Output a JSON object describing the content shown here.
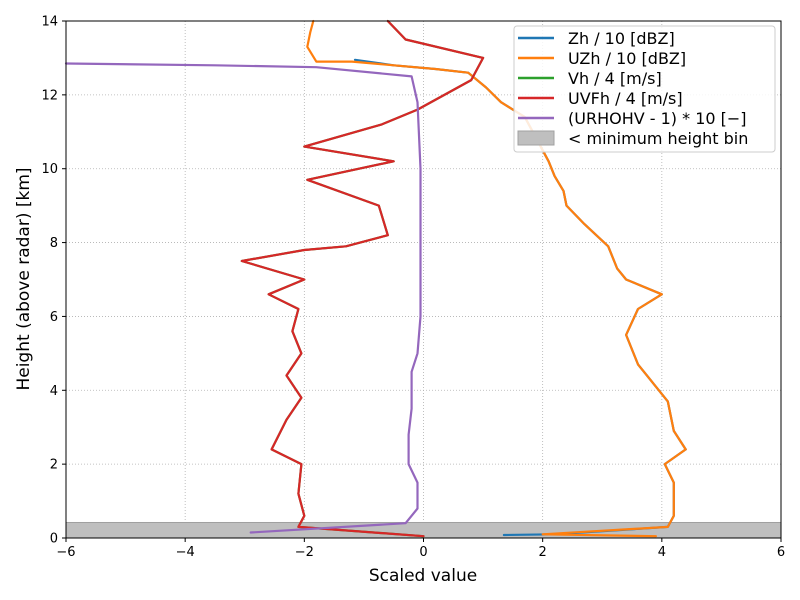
{
  "chart_data": {
    "type": "line",
    "title": "",
    "xlabel": "Scaled value",
    "ylabel": "Height (above radar) [km]",
    "xlim": [
      -6,
      6
    ],
    "ylim": [
      0,
      14
    ],
    "xticks": [
      -6,
      -4,
      -2,
      0,
      2,
      4,
      6
    ],
    "yticks": [
      0,
      2,
      4,
      6,
      8,
      10,
      12,
      14
    ],
    "xtick_labels": [
      "−6",
      "−4",
      "−2",
      "0",
      "2",
      "4",
      "6"
    ],
    "ytick_labels": [
      "0",
      "2",
      "4",
      "6",
      "8",
      "10",
      "12",
      "14"
    ],
    "grid": true,
    "legend_position": "top-right",
    "shaded_region": {
      "label": "< minimum height bin",
      "y_range": [
        0,
        0.42
      ],
      "color": "#bfbfbf"
    },
    "series": [
      {
        "name": "Zh / 10 [dBZ]",
        "color": "#1f77b4",
        "points": [
          [
            1.35,
            0.08
          ],
          [
            2.2,
            0.1
          ],
          [
            4.1,
            0.3
          ],
          [
            4.2,
            0.6
          ],
          [
            4.2,
            1.5
          ],
          [
            4.05,
            2.0
          ],
          [
            4.4,
            2.4
          ],
          [
            4.2,
            2.9
          ],
          [
            4.1,
            3.7
          ],
          [
            3.85,
            4.2
          ],
          [
            3.6,
            4.7
          ],
          [
            3.4,
            5.5
          ],
          [
            3.6,
            6.2
          ],
          [
            4.0,
            6.6
          ],
          [
            3.4,
            7.0
          ],
          [
            3.25,
            7.3
          ],
          [
            3.1,
            7.9
          ],
          [
            2.7,
            8.5
          ],
          [
            2.4,
            9.0
          ],
          [
            2.35,
            9.4
          ],
          [
            2.2,
            9.8
          ],
          [
            2.1,
            10.2
          ],
          [
            2.0,
            10.5
          ],
          [
            1.7,
            11.4
          ],
          [
            1.3,
            11.8
          ],
          [
            1.05,
            12.2
          ],
          [
            0.75,
            12.6
          ],
          [
            0.2,
            12.7
          ],
          [
            -0.5,
            12.8
          ],
          [
            -1.15,
            12.95
          ]
        ]
      },
      {
        "name": "UZh / 10 [dBZ]",
        "color": "#ff7f0e",
        "points": [
          [
            3.9,
            0.05
          ],
          [
            2.0,
            0.1
          ],
          [
            4.1,
            0.3
          ],
          [
            4.2,
            0.6
          ],
          [
            4.2,
            1.5
          ],
          [
            4.05,
            2.0
          ],
          [
            4.4,
            2.4
          ],
          [
            4.2,
            2.9
          ],
          [
            4.1,
            3.7
          ],
          [
            3.85,
            4.2
          ],
          [
            3.6,
            4.7
          ],
          [
            3.4,
            5.5
          ],
          [
            3.6,
            6.2
          ],
          [
            4.0,
            6.6
          ],
          [
            3.4,
            7.0
          ],
          [
            3.25,
            7.3
          ],
          [
            3.1,
            7.9
          ],
          [
            2.7,
            8.5
          ],
          [
            2.4,
            9.0
          ],
          [
            2.35,
            9.4
          ],
          [
            2.2,
            9.8
          ],
          [
            2.1,
            10.2
          ],
          [
            2.0,
            10.5
          ],
          [
            1.7,
            11.4
          ],
          [
            1.3,
            11.8
          ],
          [
            1.05,
            12.2
          ],
          [
            0.75,
            12.6
          ],
          [
            0.2,
            12.7
          ],
          [
            -0.5,
            12.8
          ],
          [
            -1.2,
            12.9
          ],
          [
            -1.8,
            12.9
          ],
          [
            -1.95,
            13.3
          ],
          [
            -1.9,
            13.7
          ],
          [
            -1.85,
            14.0
          ]
        ]
      },
      {
        "name": "Vh / 4 [m/s]",
        "color": "#2ca02c",
        "points": [
          [
            0.0,
            0.05
          ],
          [
            -2.1,
            0.3
          ],
          [
            -2.0,
            0.6
          ],
          [
            -2.1,
            1.2
          ],
          [
            -2.05,
            2.0
          ],
          [
            -2.55,
            2.4
          ],
          [
            -2.3,
            3.2
          ],
          [
            -2.05,
            3.8
          ],
          [
            -2.3,
            4.4
          ],
          [
            -2.05,
            5.0
          ],
          [
            -2.2,
            5.6
          ],
          [
            -2.1,
            6.2
          ],
          [
            -2.6,
            6.6
          ],
          [
            -2.0,
            7.0
          ],
          [
            -3.05,
            7.5
          ],
          [
            -2.0,
            7.8
          ],
          [
            -1.3,
            7.9
          ],
          [
            -0.6,
            8.2
          ],
          [
            -0.75,
            9.0
          ],
          [
            -1.95,
            9.7
          ],
          [
            -0.5,
            10.2
          ],
          [
            -2.0,
            10.6
          ],
          [
            -0.7,
            11.2
          ],
          [
            -0.1,
            11.6
          ],
          [
            0.8,
            12.4
          ],
          [
            1.0,
            13.0
          ],
          [
            -0.3,
            13.5
          ],
          [
            -0.6,
            14.0
          ]
        ]
      },
      {
        "name": "UVFh / 4 [m/s]",
        "color": "#d62728",
        "points": [
          [
            0.0,
            0.05
          ],
          [
            -2.1,
            0.3
          ],
          [
            -2.0,
            0.6
          ],
          [
            -2.1,
            1.2
          ],
          [
            -2.05,
            2.0
          ],
          [
            -2.55,
            2.4
          ],
          [
            -2.3,
            3.2
          ],
          [
            -2.05,
            3.8
          ],
          [
            -2.3,
            4.4
          ],
          [
            -2.05,
            5.0
          ],
          [
            -2.2,
            5.6
          ],
          [
            -2.1,
            6.2
          ],
          [
            -2.6,
            6.6
          ],
          [
            -2.0,
            7.0
          ],
          [
            -3.05,
            7.5
          ],
          [
            -2.0,
            7.8
          ],
          [
            -1.3,
            7.9
          ],
          [
            -0.6,
            8.2
          ],
          [
            -0.75,
            9.0
          ],
          [
            -1.95,
            9.7
          ],
          [
            -0.5,
            10.2
          ],
          [
            -2.0,
            10.6
          ],
          [
            -0.7,
            11.2
          ],
          [
            -0.1,
            11.6
          ],
          [
            0.8,
            12.4
          ],
          [
            1.0,
            13.0
          ],
          [
            -0.3,
            13.5
          ],
          [
            -0.6,
            14.0
          ]
        ]
      },
      {
        "name": "(URHOHV - 1) * 10 [−]",
        "color": "#9467bd",
        "points": [
          [
            -2.9,
            0.15
          ],
          [
            -0.3,
            0.4
          ],
          [
            -0.1,
            0.8
          ],
          [
            -0.1,
            1.5
          ],
          [
            -0.25,
            2.0
          ],
          [
            -0.25,
            2.8
          ],
          [
            -0.2,
            3.5
          ],
          [
            -0.2,
            4.5
          ],
          [
            -0.1,
            5.0
          ],
          [
            -0.05,
            6.0
          ],
          [
            -0.05,
            8.0
          ],
          [
            -0.05,
            10.0
          ],
          [
            -0.1,
            11.8
          ],
          [
            -0.2,
            12.5
          ],
          [
            -1.8,
            12.75
          ],
          [
            -3.5,
            12.8
          ],
          [
            -6.0,
            12.85
          ]
        ]
      }
    ]
  }
}
